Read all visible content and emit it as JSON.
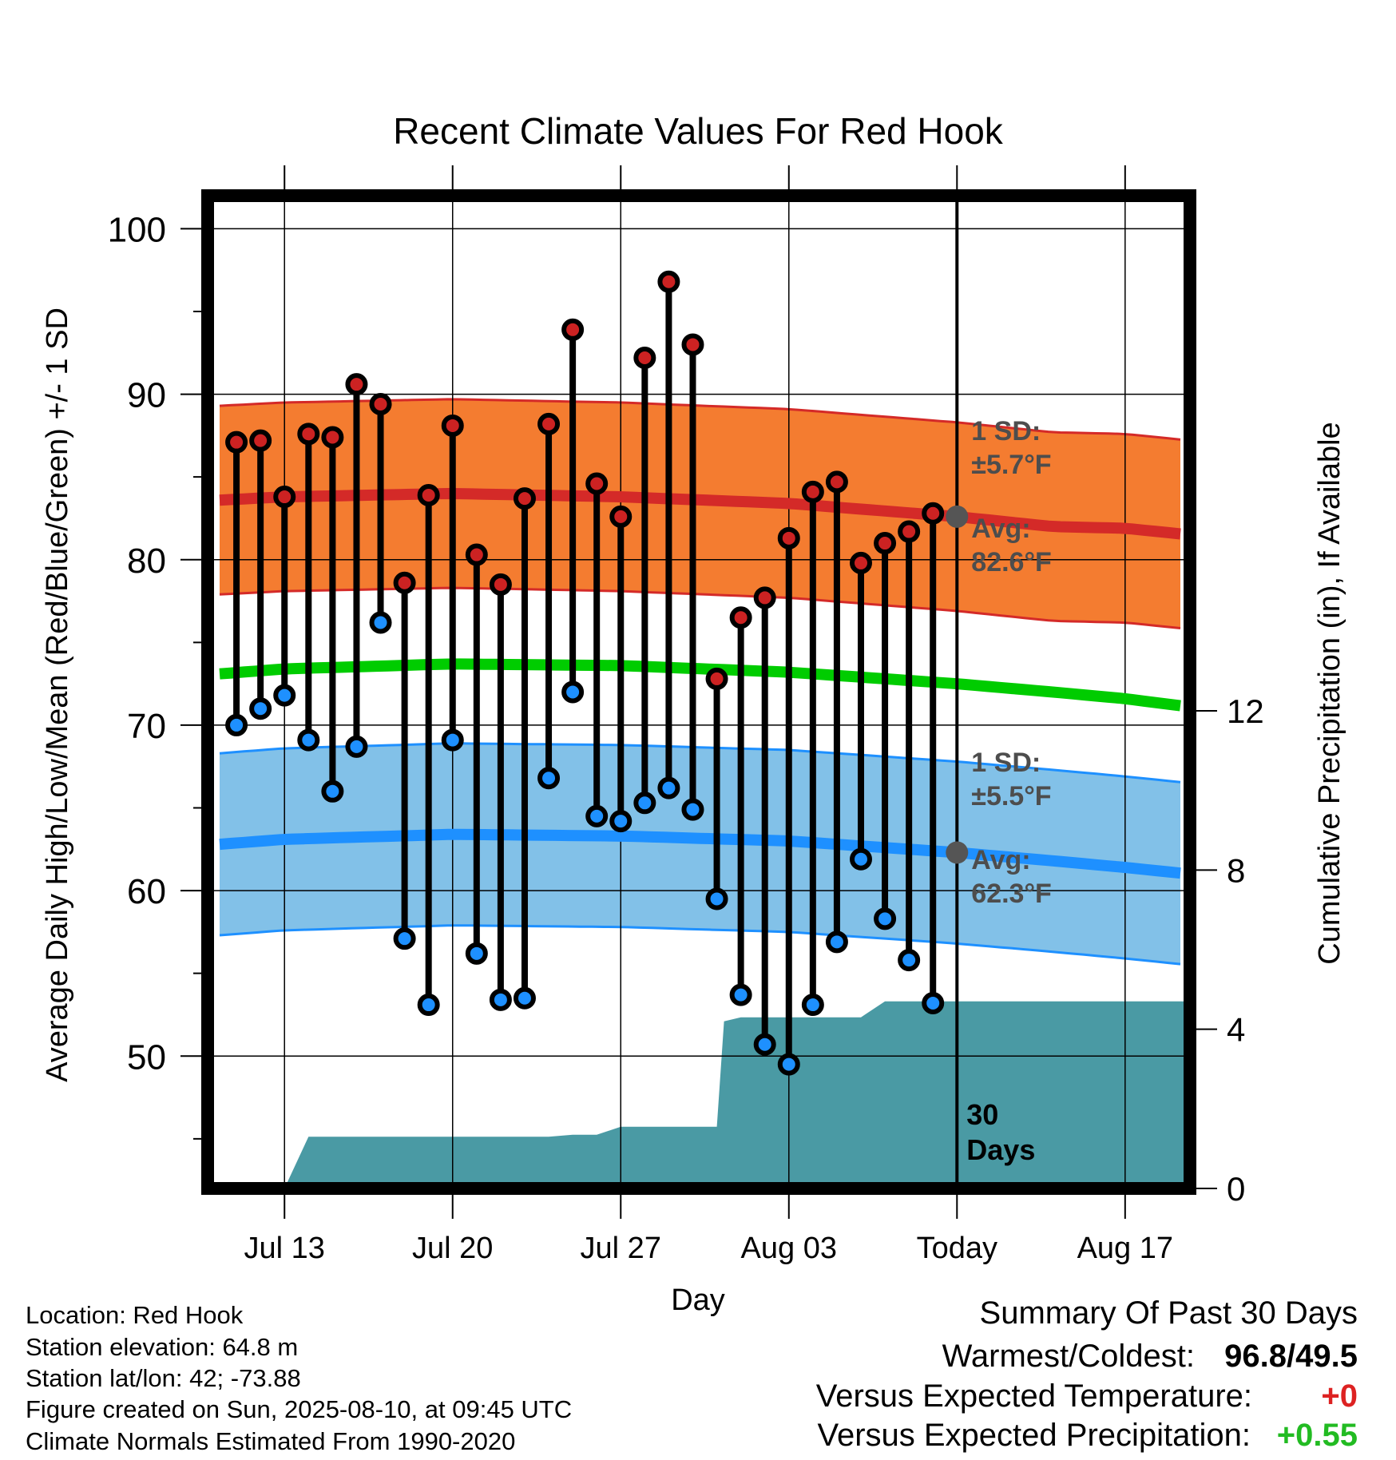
{
  "chart_data": {
    "type": "line",
    "title": "Recent Climate Values For Red Hook",
    "xlabel": "Day",
    "ylabel_left": "Average Daily High/Low/Mean (Red/Blue/Green) +/- 1 SD",
    "ylabel_right": "Cumulative Precipitation (in), If Available",
    "x_ticks": [
      {
        "day": 0,
        "label": "Jul 13"
      },
      {
        "day": 7,
        "label": "Jul 20"
      },
      {
        "day": 14,
        "label": "Jul 27"
      },
      {
        "day": 21,
        "label": "Aug 03"
      },
      {
        "day": 28,
        "label": "Today"
      },
      {
        "day": 35,
        "label": "Aug 17"
      }
    ],
    "xlim_days": [
      -3.2,
      37.7
    ],
    "ylim_left": [
      42,
      102
    ],
    "y_ticks_left": [
      50,
      60,
      70,
      80,
      90,
      100
    ],
    "ylim_right": [
      0,
      13
    ],
    "y_ticks_right": [
      0,
      4,
      8,
      12
    ],
    "today_day": 28,
    "today_label": [
      "30",
      "Days"
    ],
    "normals_days": [
      -2.7,
      0,
      7,
      14,
      21,
      28,
      32,
      35,
      37.7
    ],
    "normal_high": [
      83.6,
      83.8,
      84.0,
      83.8,
      83.4,
      82.6,
      82.0,
      81.9,
      81.5
    ],
    "normal_high_sd": 5.7,
    "normal_low": [
      62.8,
      63.1,
      63.4,
      63.3,
      63.0,
      62.3,
      61.8,
      61.4,
      61.0
    ],
    "normal_low_sd": 5.5,
    "normal_mean": [
      73.1,
      73.4,
      73.7,
      73.6,
      73.2,
      72.5,
      72.0,
      71.6,
      71.1
    ],
    "daily_days": [
      -2,
      -1,
      0,
      1,
      2,
      3,
      4,
      5,
      6,
      7,
      8,
      9,
      10,
      11,
      12,
      13,
      14,
      15,
      16,
      17,
      18,
      19,
      20,
      21,
      22,
      23,
      24,
      25,
      26,
      27
    ],
    "daily_high": [
      87.1,
      87.2,
      83.8,
      87.6,
      87.4,
      90.6,
      89.4,
      78.6,
      83.9,
      88.1,
      80.3,
      78.5,
      83.7,
      88.2,
      93.9,
      84.6,
      82.6,
      92.2,
      96.8,
      93.0,
      72.8,
      76.5,
      77.7,
      81.3,
      84.1,
      84.7,
      79.8,
      81.0,
      81.7,
      82.8
    ],
    "daily_low": [
      70.0,
      71.0,
      71.8,
      69.1,
      66.0,
      68.7,
      76.2,
      57.1,
      53.1,
      69.1,
      56.2,
      53.4,
      53.5,
      66.8,
      72.0,
      64.5,
      64.2,
      65.3,
      66.2,
      64.9,
      59.5,
      53.7,
      50.7,
      49.5,
      53.1,
      56.9,
      61.9,
      58.3,
      55.8,
      53.2
    ],
    "precip_days": [
      0,
      1,
      2,
      3,
      4,
      5,
      6,
      7,
      8,
      9,
      10,
      11,
      12,
      13,
      14,
      15,
      16,
      17,
      18,
      18.3,
      19,
      20,
      21,
      22,
      23,
      24,
      25,
      26,
      27,
      28,
      29,
      30,
      31,
      32,
      33,
      34,
      35,
      36,
      37.7
    ],
    "precip_cum": [
      0.0,
      1.3,
      1.3,
      1.3,
      1.3,
      1.3,
      1.3,
      1.3,
      1.3,
      1.3,
      1.3,
      1.3,
      1.35,
      1.35,
      1.55,
      1.55,
      1.55,
      1.55,
      1.55,
      4.2,
      4.3,
      4.3,
      4.3,
      4.3,
      4.3,
      4.3,
      4.7,
      4.7,
      4.7,
      4.7,
      4.7,
      4.7,
      4.7,
      4.7,
      4.7,
      4.7,
      4.7,
      4.7,
      4.7
    ],
    "annotations": {
      "high_sd": [
        "1 SD:",
        "±5.7°F"
      ],
      "high_avg": [
        "Avg:",
        "82.6°F"
      ],
      "low_sd": [
        "1 SD:",
        "±5.5°F"
      ],
      "low_avg": [
        "Avg:",
        "62.3°F"
      ]
    },
    "colors": {
      "high_band": "#f47c30",
      "high_line": "#d42a28",
      "low_band": "#82c1e8",
      "low_line": "#1e90ff",
      "mean_line": "#00cc00",
      "precip": "#4a9aa4",
      "high_dot": "#cc2222",
      "low_dot": "#1e90ff",
      "avg_marker": "#555555",
      "positive": "#22bb22",
      "warm": "#dd2222"
    }
  },
  "info": {
    "location": "Location: Red Hook",
    "elevation": "Station elevation: 64.8 m",
    "latlon": "Station lat/lon: 42; -73.88",
    "created": "Figure created on Sun, 2025-08-10, at 09:45 UTC",
    "normals": "Climate Normals Estimated From 1990-2020"
  },
  "summary": {
    "heading": "Summary Of Past 30 Days",
    "warmest_label": "Warmest/Coldest:",
    "warmest_value": "96.8/49.5",
    "temp_label": "Versus Expected Temperature:",
    "temp_value": "+0",
    "precip_label": "Versus Expected Precipitation:",
    "precip_value": "+0.55"
  }
}
